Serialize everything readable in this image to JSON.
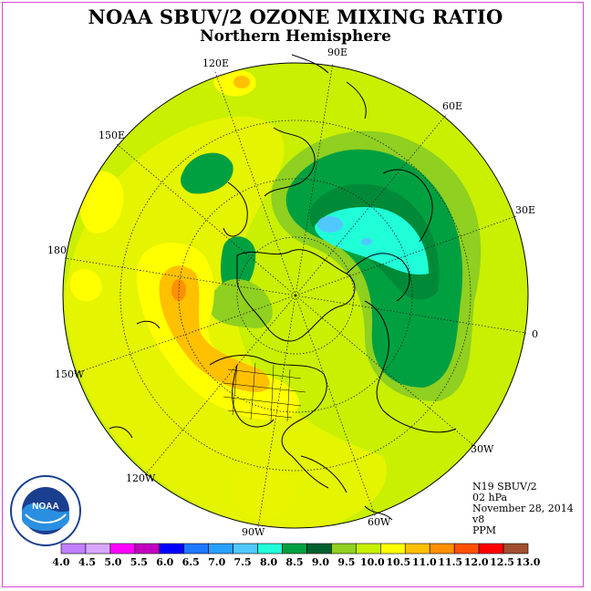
{
  "title": "NOAA SBUV/2 OZONE MIXING RATIO",
  "subtitle": "Northern Hemisphere",
  "longitude_labels": [
    "90E",
    "60E",
    "30E",
    "0",
    "30W",
    "60W",
    "90W",
    "120W",
    "150W",
    "180",
    "150E",
    "120E"
  ],
  "info": {
    "satellite": "N19 SBUV/2",
    "level": "02 hPa",
    "date": "November 28, 2014",
    "version": "v8",
    "units": "PPM"
  },
  "logo": {
    "text": "NOAA",
    "ring_text": "NATIONAL OCEANIC AND ATMOSPHERIC ADMINISTRATION · U.S. DEPARTMENT OF COMMERCE"
  },
  "colorbar": {
    "ticks": [
      "4.0",
      "4.5",
      "5.0",
      "5.5",
      "6.0",
      "6.5",
      "7.0",
      "7.5",
      "8.0",
      "8.5",
      "9.0",
      "9.5",
      "10.0",
      "10.5",
      "11.0",
      "11.5",
      "12.0",
      "12.5",
      "13.0"
    ],
    "colors": [
      "#c080ff",
      "#d8a8ff",
      "#ff00ff",
      "#c000c0",
      "#0000ff",
      "#1e78ff",
      "#28a0ff",
      "#50c8ff",
      "#20ffd8",
      "#00a040",
      "#006030",
      "#90d020",
      "#c8f000",
      "#ffff00",
      "#ffc000",
      "#ff9000",
      "#ff5000",
      "#ff0000",
      "#a05030"
    ]
  }
}
